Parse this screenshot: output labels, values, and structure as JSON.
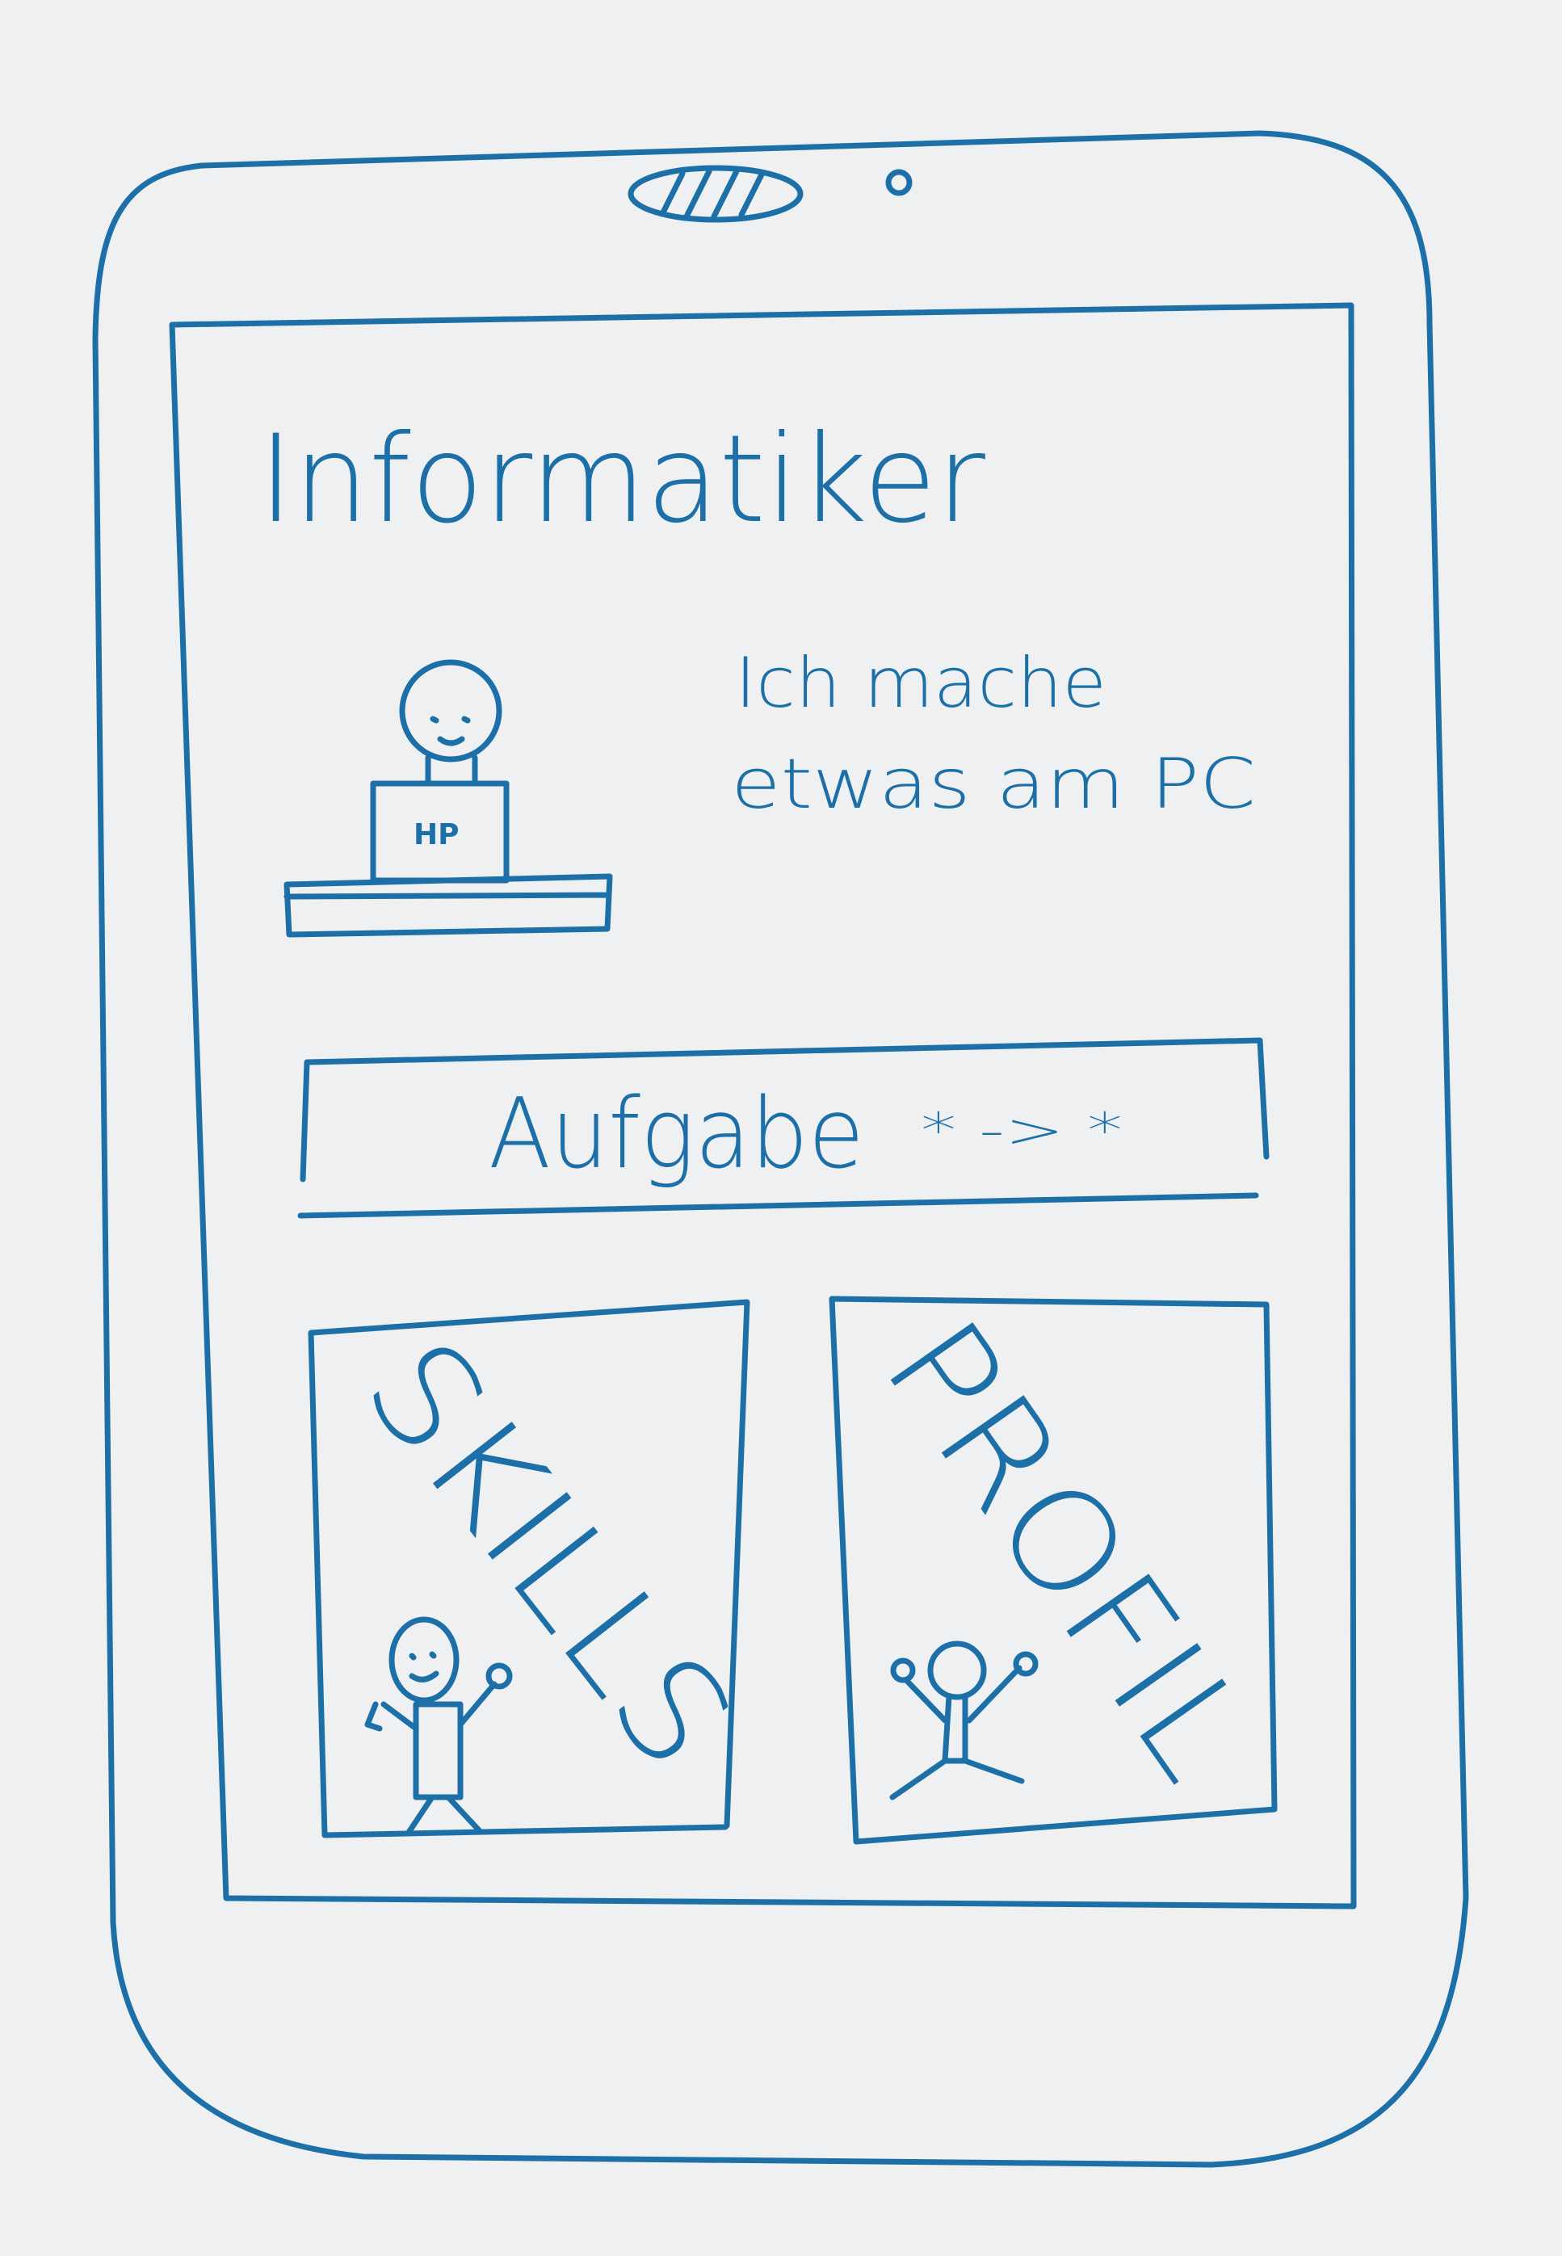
{
  "header": {
    "title": "Informatiker"
  },
  "profile": {
    "description_line1": "Ich mache",
    "description_line2": "etwas am PC",
    "monitor_label": "HP"
  },
  "task_button": {
    "label": "Aufgabe",
    "stars": "* -> *"
  },
  "tiles": {
    "skills": {
      "label": "SKILLS"
    },
    "profil": {
      "label": "PROFIL"
    }
  },
  "colors": {
    "ink": "#1d6fa8",
    "paper": "#eef0f2"
  },
  "icons": [
    "speaker-icon",
    "camera-icon",
    "person-at-computer-icon",
    "waving-person-icon",
    "jumping-person-icon"
  ]
}
